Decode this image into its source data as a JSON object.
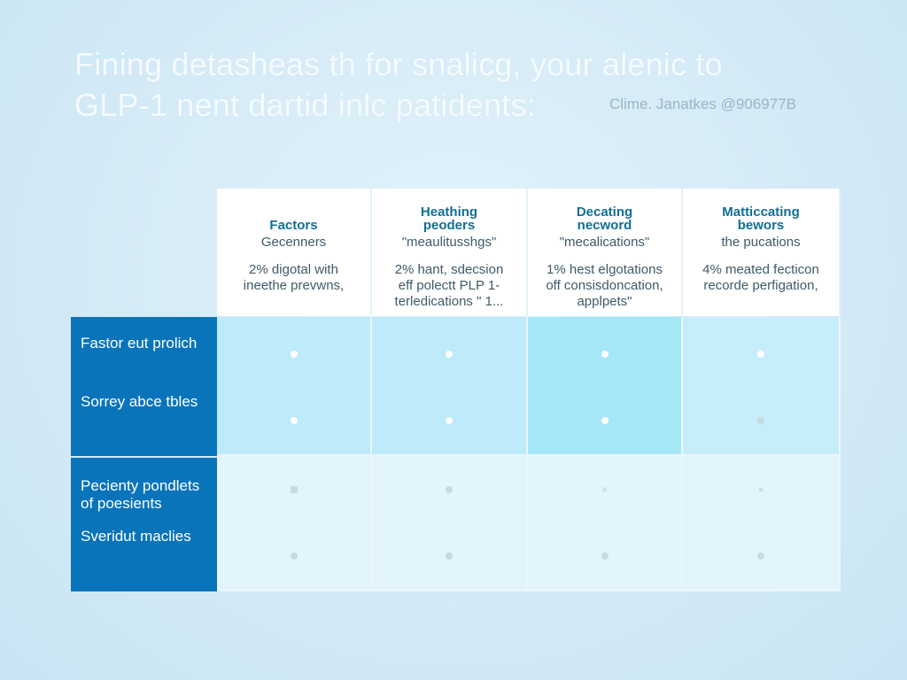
{
  "title_lines": [
    "Fining detasheas th for snalicg, your alenic to",
    "GLP-1 nent dartid inlc patidents:"
  ],
  "credit": "Clime. Janatkes @906977B",
  "columns": [
    {
      "heading": "Factors",
      "sub": "Gecenners",
      "desc": [
        "2% digotal with",
        "ineethe prevwns,"
      ]
    },
    {
      "heading": "Heathing\npeoders",
      "sub": "\"meaulitusshgs\"",
      "desc": [
        "2% hant, sdecsion",
        "eff polectt PLP 1-",
        "terledications \" 1..."
      ]
    },
    {
      "heading": "Decating\nnecword",
      "sub": "\"mecalications\"",
      "desc": [
        "1% hest elgotations",
        "off consisdoncation,",
        "applpets\""
      ]
    },
    {
      "heading": "Matticcating\nbewors",
      "sub": "the pucations",
      "desc": [
        "4% meated fecticon",
        "recorde perfigation,"
      ]
    }
  ],
  "row_groups": [
    {
      "labels": [
        "Fastor eut prolich",
        "Sorrey abce tbles"
      ],
      "markers": [
        [
          "dot",
          "dot",
          "dot",
          "dot"
        ],
        [
          "dot",
          "dot",
          "dot",
          "grey-dot"
        ]
      ]
    },
    {
      "labels": [
        "Pecienty pondlets of poesients",
        "Sveridut maclies"
      ],
      "markers": [
        [
          "square",
          "grey-dot",
          "x",
          "x"
        ],
        [
          "grey-dot",
          "grey-dot",
          "grey-dot",
          "grey-dot"
        ]
      ]
    }
  ],
  "colors": {
    "sidebar": "#0a74bb",
    "heading": "#0f6f94",
    "group1": "#bdebf9",
    "group1_highlight": "#a6e7f7",
    "group2": "#e2f5fd"
  }
}
